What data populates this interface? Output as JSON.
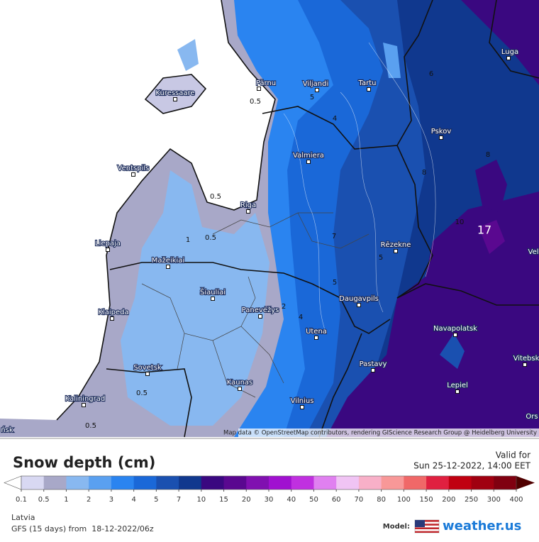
{
  "map": {
    "cities": [
      "Pärnu",
      "Viljandi",
      "Tartu",
      "Kuressaare",
      "Luga",
      "Pskov",
      "Valmiera",
      "Ventspils",
      "Riga",
      "Liepaja",
      "Rēzekne",
      "Mažeikiai",
      "Šiauliai",
      "Klaipeda",
      "Daugavpils",
      "Panevėžys",
      "Navapolatsk",
      "Utena",
      "Vitebsk",
      "Sovetsk",
      "Pastavy",
      "Kaunas",
      "Lepiel",
      "Kaliningrad",
      "Vilnius",
      "Vel",
      "Ors",
      "ńsk"
    ],
    "contour_labels": [
      0.5,
      0.5,
      0.5,
      1,
      2,
      4,
      5,
      5,
      7,
      8,
      6,
      4,
      5,
      10,
      8,
      0.5,
      0.5
    ],
    "peak_label": 17,
    "attribution": "Map data © OpenStreetMap contributors, rendering GIScience Research Group @ Heidelberg University"
  },
  "legend": {
    "title": "Snow depth (cm)",
    "valid_label": "Valid for",
    "valid_time": "Sun 25-12-2022, 14:00 EET",
    "ticks": [
      0.1,
      0.5,
      1,
      2,
      3,
      4,
      5,
      7,
      10,
      15,
      20,
      30,
      40,
      50,
      60,
      70,
      80,
      100,
      150,
      200,
      250,
      300,
      400
    ],
    "colors": [
      "#d8d8f2",
      "#a8a8c8",
      "#88b8f0",
      "#5aa0f0",
      "#2a84f0",
      "#1a68d8",
      "#1a50b0",
      "#10388e",
      "#3a0880",
      "#5a0890",
      "#8010b0",
      "#a010d0",
      "#c030e0",
      "#e080f0",
      "#f0c4f4",
      "#f8b0c8",
      "#f89898",
      "#f06868",
      "#e02040",
      "#c00010",
      "#a00010",
      "#800010"
    ],
    "low_color": "#ffffff",
    "high_color": "#500000"
  },
  "footer": {
    "region": "Latvia",
    "model_run": "GFS (15 days) from  18-12-2022/06z",
    "model_label": "Model:",
    "brand": "weather.us"
  }
}
